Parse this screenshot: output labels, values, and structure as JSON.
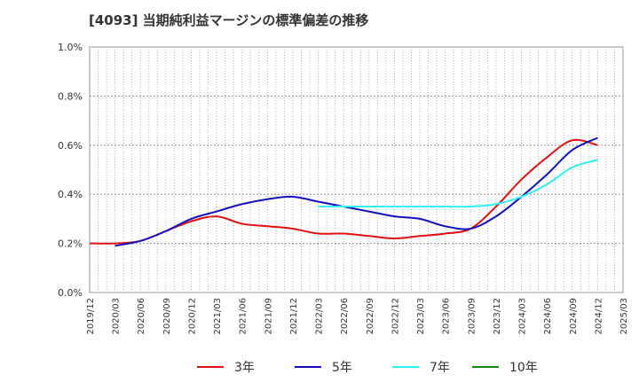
{
  "title": "[4093]  当期純利益マージンの標準偏差の推移",
  "chart_data": {
    "type": "line",
    "title": "[4093]  当期純利益マージンの標準偏差の推移",
    "xlabel": "",
    "ylabel": "",
    "ylim": [
      0,
      1.0
    ],
    "yticks": [
      "0.0%",
      "0.2%",
      "0.4%",
      "0.6%",
      "0.8%",
      "1.0%"
    ],
    "xticks": [
      "2019/12",
      "2020/03",
      "2020/06",
      "2020/09",
      "2020/12",
      "2021/03",
      "2021/06",
      "2021/09",
      "2021/12",
      "2022/03",
      "2022/06",
      "2022/09",
      "2022/12",
      "2023/03",
      "2023/06",
      "2023/09",
      "2023/12",
      "2024/03",
      "2024/06",
      "2024/09",
      "2024/12",
      "2025/03"
    ],
    "grid": true,
    "legend_position": "bottom",
    "series": [
      {
        "name": "3年",
        "color": "#dd1111",
        "x": [
          "2019/12",
          "2020/03",
          "2020/06",
          "2020/09",
          "2020/12",
          "2021/03",
          "2021/06",
          "2021/09",
          "2021/12",
          "2022/03",
          "2022/06",
          "2022/09",
          "2022/12",
          "2023/03",
          "2023/06",
          "2023/09",
          "2023/12",
          "2024/03",
          "2024/06",
          "2024/09",
          "2024/12"
        ],
        "values": [
          0.2,
          0.2,
          0.21,
          0.25,
          0.29,
          0.31,
          0.28,
          0.27,
          0.26,
          0.24,
          0.24,
          0.23,
          0.22,
          0.23,
          0.24,
          0.26,
          0.35,
          0.46,
          0.55,
          0.62,
          0.6
        ]
      },
      {
        "name": "5年",
        "color": "#1111bb",
        "x": [
          "2020/03",
          "2020/06",
          "2020/09",
          "2020/12",
          "2021/03",
          "2021/06",
          "2021/09",
          "2021/12",
          "2022/03",
          "2022/06",
          "2022/09",
          "2022/12",
          "2023/03",
          "2023/06",
          "2023/09",
          "2023/12",
          "2024/03",
          "2024/06",
          "2024/09",
          "2024/12"
        ],
        "values": [
          0.19,
          0.21,
          0.25,
          0.3,
          0.33,
          0.36,
          0.38,
          0.39,
          0.37,
          0.35,
          0.33,
          0.31,
          0.3,
          0.27,
          0.26,
          0.31,
          0.39,
          0.48,
          0.58,
          0.63
        ]
      },
      {
        "name": "7年",
        "color": "#33eeee",
        "x": [
          "2022/03",
          "2022/06",
          "2022/09",
          "2022/12",
          "2023/03",
          "2023/06",
          "2023/09",
          "2023/12",
          "2024/03",
          "2024/06",
          "2024/09",
          "2024/12"
        ],
        "values": [
          0.35,
          0.35,
          0.35,
          0.35,
          0.35,
          0.35,
          0.35,
          0.36,
          0.39,
          0.44,
          0.51,
          0.54
        ]
      },
      {
        "name": "10年",
        "color": "#118811",
        "x": [],
        "values": []
      }
    ]
  }
}
